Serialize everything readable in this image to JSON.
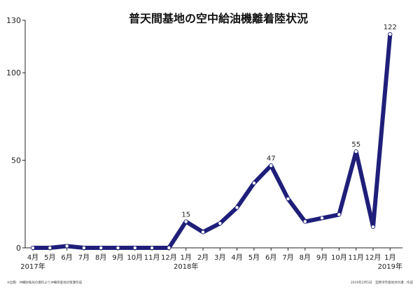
{
  "chart_data": {
    "type": "line",
    "title": "普天間基地の空中給油機離着陸状況",
    "categories": [
      "4月",
      "5月",
      "6月",
      "7月",
      "8月",
      "9月",
      "10月",
      "11月",
      "12月",
      "1月",
      "2月",
      "3月",
      "4月",
      "5月",
      "6月",
      "7月",
      "8月",
      "9月",
      "10月",
      "11月",
      "12月",
      "1月"
    ],
    "year_labels": [
      {
        "index": 0,
        "label": "2017年"
      },
      {
        "index": 9,
        "label": "2018年"
      },
      {
        "index": 21,
        "label": "2019年"
      }
    ],
    "series": [
      {
        "values": [
          0,
          0,
          1,
          0,
          0,
          0,
          0,
          0,
          0,
          15,
          9,
          14,
          23,
          37,
          47,
          28,
          15,
          17,
          19,
          55,
          12,
          122
        ]
      }
    ],
    "labeled_points": [
      9,
      14,
      19,
      21
    ],
    "ylim": [
      0,
      130
    ],
    "yticks": [
      0,
      50,
      100,
      130
    ],
    "line_color": "#1f1f7a",
    "marker_fill": "#ffffff",
    "footnote_left": "※出典：沖縄防衛局の資料より沖縄県基地対策課作成",
    "footnote_right": "2019年2月5日　宜野湾市基地渉外課　作成"
  }
}
